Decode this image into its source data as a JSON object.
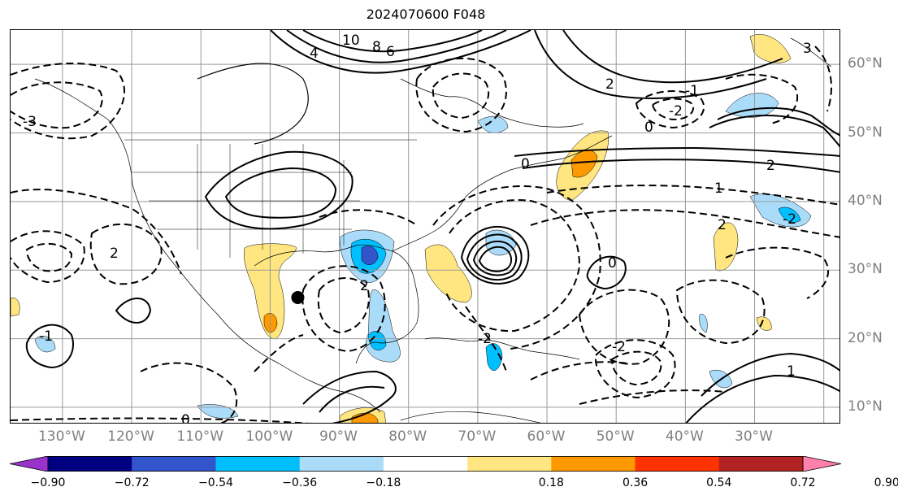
{
  "title": "2024070600 F048",
  "map": {
    "lon_labels": [
      "130°W",
      "120°W",
      "110°W",
      "100°W",
      "90°W",
      "80°W",
      "70°W",
      "60°W",
      "50°W",
      "40°W",
      "30°W"
    ],
    "lat_labels": [
      "60°N",
      "50°N",
      "40°N",
      "30°N",
      "20°N",
      "10°N"
    ],
    "lon_range": [
      -137.5,
      -17.5
    ],
    "lat_range": [
      7.5,
      65
    ],
    "contour_labels": [
      "10",
      "8",
      "6",
      "4",
      "2",
      "0",
      "-2",
      "-1",
      "3",
      "2",
      "1",
      "0",
      "-3",
      "2",
      "-2",
      "-1",
      "0",
      "-2",
      "1",
      "2",
      "-2",
      "0",
      "2"
    ],
    "storm_marker": {
      "lon": -96,
      "lat": 26
    }
  },
  "colorbar": {
    "ticks": [
      "−0.90",
      "−0.72",
      "−0.54",
      "−0.36",
      "−0.18",
      "0.18",
      "0.36",
      "0.54",
      "0.72",
      "0.90"
    ],
    "colors": {
      "lt_neg_0_90": "#9933cc",
      "neg_0_90_to_neg_0_72": "#000080",
      "neg_0_72_to_neg_0_54": "#3355cc",
      "neg_0_54_to_neg_0_36": "#00bfff",
      "neg_0_36_to_neg_0_18": "#aadcf9",
      "neg_0_18_to_0_18": "#ffffff",
      "0_18_to_0_36": "#ffe680",
      "0_36_to_0_54": "#ff9900",
      "0_54_to_0_72": "#ff3300",
      "0_72_to_0_90": "#b22222",
      "gt_0_90": "#ff80aa"
    }
  }
}
